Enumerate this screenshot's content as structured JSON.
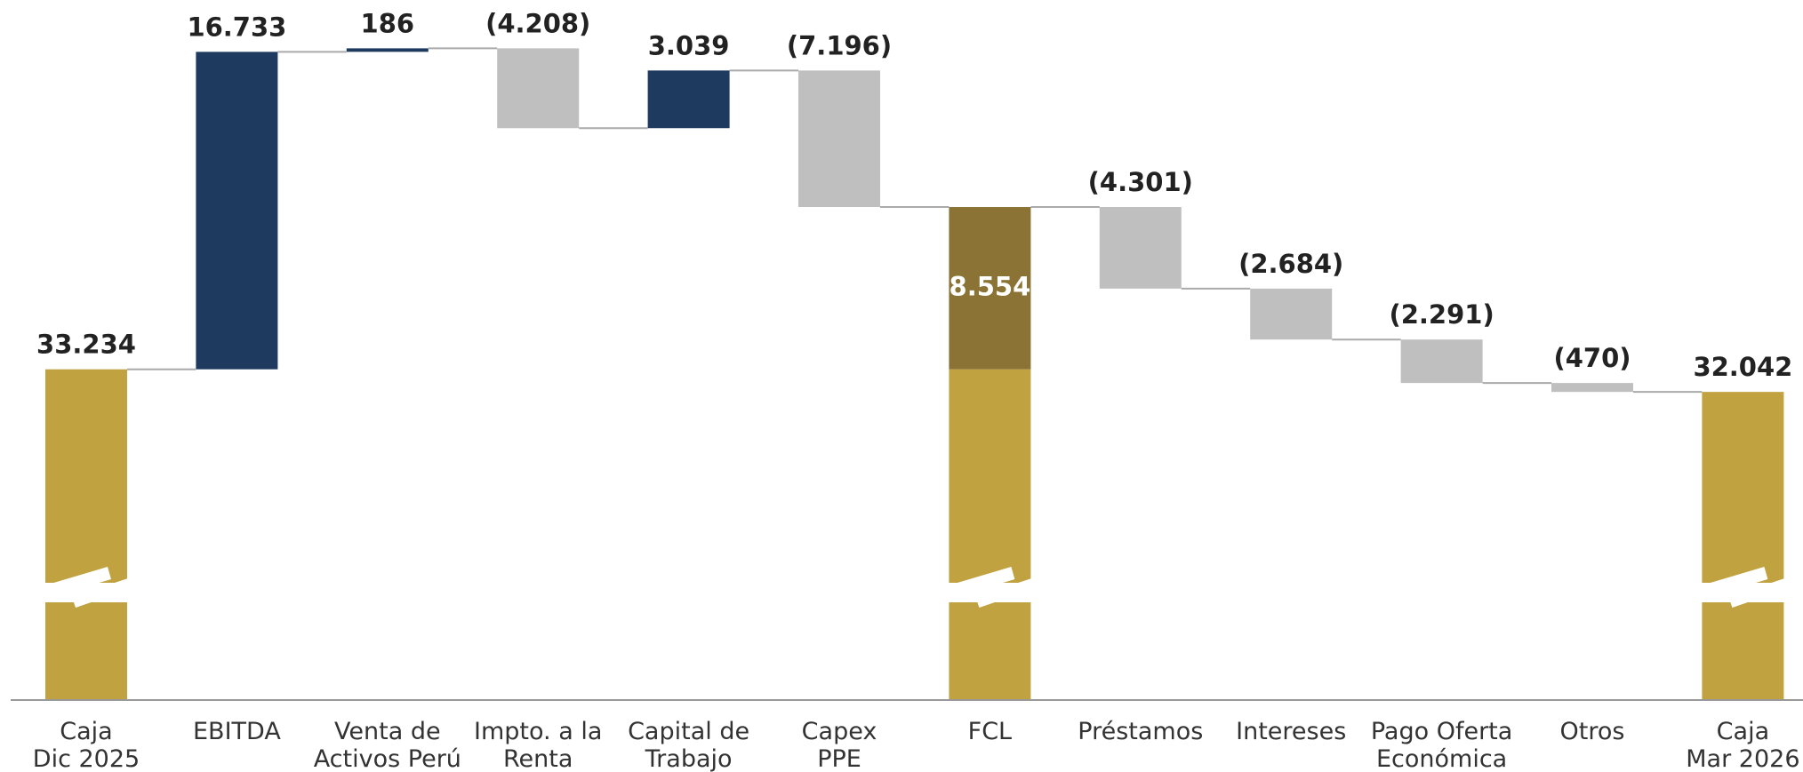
{
  "chart_data": {
    "type": "waterfall",
    "categories": [
      "Caja\nDic 2025",
      "EBITDA",
      "Venta de\nActivos Perú",
      "Impto. a la\nRenta",
      "Capital de\nTrabajo",
      "Capex\nPPE",
      "FCL",
      "Préstamos",
      "Intereses",
      "Pago Oferta\nEconómica",
      "Otros",
      "Caja\nMar 2026"
    ],
    "values": [
      33234,
      16733,
      186,
      -4208,
      3039,
      -7196,
      8554,
      -4301,
      -2684,
      -2291,
      -470,
      32042
    ],
    "value_labels": [
      "33.234",
      "16.733",
      "186",
      "(4.208)",
      "3.039",
      "(7.196)",
      "8.554",
      "(4.301)",
      "(2.684)",
      "(2.291)",
      "(470)",
      "32.042"
    ],
    "measure": [
      "total",
      "relative",
      "relative",
      "relative",
      "relative",
      "relative",
      "subtotal",
      "relative",
      "relative",
      "relative",
      "relative",
      "total"
    ],
    "colors": {
      "total": "#C1A241",
      "increase": "#1F3A5F",
      "decrease": "#BFBFBF",
      "subtotal": "#8B7335"
    },
    "ylim": [
      15800,
      52700
    ]
  }
}
